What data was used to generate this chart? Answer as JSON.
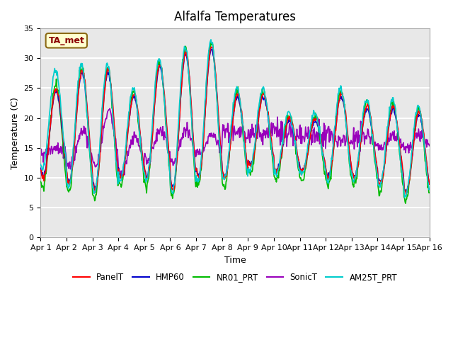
{
  "title": "Alfalfa Temperatures",
  "xlabel": "Time",
  "ylabel": "Temperature (C)",
  "ylim": [
    0,
    35
  ],
  "yticks": [
    0,
    5,
    10,
    15,
    20,
    25,
    30,
    35
  ],
  "x_labels": [
    "Apr 1",
    "Apr 2",
    "Apr 3",
    "Apr 4",
    "Apr 5",
    "Apr 6",
    "Apr 7",
    "Apr 8",
    "Apr 9",
    "Apr 10",
    "Apr 11",
    "Apr 12",
    "Apr 13",
    "Apr 14",
    "Apr 15",
    "Apr 16"
  ],
  "annotation_text": "TA_met",
  "annotation_color": "#8B0000",
  "annotation_bg": "#FFFFD0",
  "annotation_border": "#8B6914",
  "series_colors": {
    "PanelT": "#FF0000",
    "HMP60": "#0000CC",
    "NR01_PRT": "#00BB00",
    "SonicT": "#9900BB",
    "AM25T_PRT": "#00CCCC"
  },
  "bg_color": "#E8E8E8",
  "grid_color": "#FFFFFF",
  "n_points": 720
}
